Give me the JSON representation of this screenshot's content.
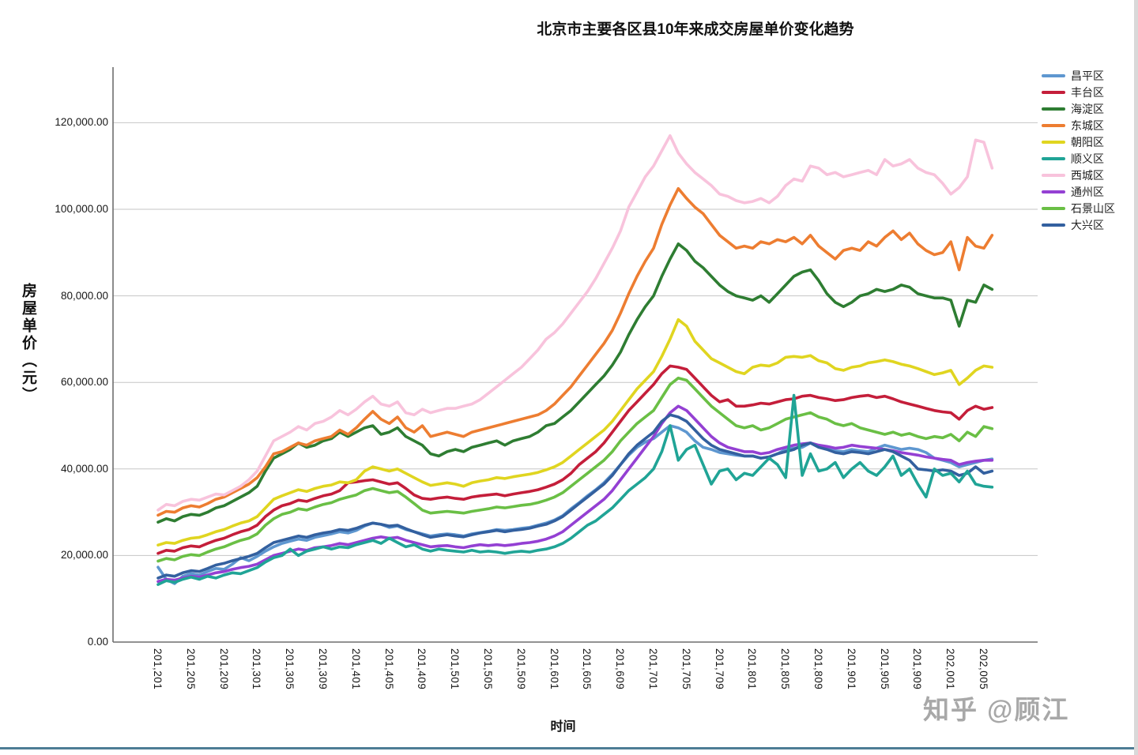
{
  "page": {
    "watermark": "知乎 @顾江",
    "bottom_bar_color": "#4d7d95"
  },
  "chart_data": {
    "type": "line",
    "title": "北京市主要各区县10年来成交房屋单价变化趋势",
    "xlabel": "时间",
    "ylabel": "房屋单价（元）",
    "x_start": "2012-01",
    "x_end": "2020-06",
    "x_interval": "monthly",
    "grid": true,
    "legend_position": "right",
    "ylim": [
      0,
      130000
    ],
    "y_ticks": [
      0,
      20000,
      40000,
      60000,
      80000,
      100000,
      120000
    ],
    "y_tick_labels": [
      "0.00",
      "20,000.00",
      "40,000.00",
      "60,000.00",
      "80,000.00",
      "100,000.00",
      "120,000.00"
    ],
    "x_tick_every_months": 4,
    "x_tick_labels": [
      "201,201",
      "201,205",
      "201,209",
      "201,301",
      "201,305",
      "201,309",
      "201,401",
      "201,405",
      "201,409",
      "201,501",
      "201,505",
      "201,509",
      "201,601",
      "201,605",
      "201,609",
      "201,701",
      "201,705",
      "201,709",
      "201,801",
      "201,805",
      "201,809",
      "201,901",
      "201,905",
      "201,909",
      "202,001",
      "202,005"
    ],
    "series": [
      {
        "name": "昌平区",
        "color": "#5E97D0",
        "values": [
          17300,
          14500,
          13500,
          15200,
          15800,
          15500,
          16300,
          17000,
          16800,
          18000,
          19500,
          18800,
          19800,
          21000,
          22000,
          22800,
          23300,
          23800,
          23500,
          24200,
          24600,
          25000,
          25500,
          25200,
          25800,
          26800,
          27500,
          27200,
          26500,
          26800,
          26000,
          25500,
          25000,
          24500,
          24800,
          25000,
          24800,
          24500,
          25000,
          25300,
          25600,
          26000,
          25800,
          26000,
          26300,
          26500,
          27000,
          27500,
          28200,
          29200,
          30800,
          32200,
          33800,
          35200,
          36800,
          38800,
          41000,
          43200,
          45000,
          46200,
          47000,
          48500,
          50000,
          49500,
          48500,
          46500,
          45000,
          44500,
          43800,
          43500,
          43200,
          43000,
          43000,
          42500,
          42800,
          43500,
          44500,
          44800,
          45000,
          46000,
          45200,
          45000,
          44200,
          44000,
          44500,
          44200,
          44000,
          44800,
          45500,
          45000,
          44500,
          44800,
          44500,
          43800,
          42500,
          42000,
          41500,
          40500,
          41000,
          41500,
          42000,
          42300
        ]
      },
      {
        "name": "丰台区",
        "color": "#C41E3A",
        "values": [
          20500,
          21200,
          21000,
          21800,
          22200,
          22000,
          22800,
          23500,
          24000,
          24800,
          25500,
          26000,
          27000,
          29000,
          30500,
          31500,
          32000,
          32800,
          32500,
          33200,
          33800,
          34200,
          35000,
          36800,
          37000,
          37300,
          37500,
          37000,
          36500,
          36800,
          35500,
          34000,
          33200,
          33000,
          33300,
          33500,
          33200,
          33000,
          33500,
          33800,
          34000,
          34200,
          33800,
          34200,
          34500,
          34800,
          35200,
          35800,
          36500,
          37500,
          39000,
          41000,
          42500,
          44000,
          46000,
          48500,
          51000,
          53500,
          55500,
          57500,
          59500,
          62000,
          63800,
          63500,
          63000,
          61000,
          59000,
          57000,
          55500,
          56000,
          54500,
          54500,
          54800,
          55200,
          55000,
          55500,
          56000,
          56200,
          56800,
          57000,
          56500,
          56200,
          55800,
          56000,
          56500,
          56800,
          57000,
          56500,
          56800,
          56200,
          55500,
          55000,
          54500,
          54000,
          53500,
          53200,
          53000,
          51500,
          53500,
          54500,
          53800,
          54200
        ]
      },
      {
        "name": "海淀区",
        "color": "#2E7D32",
        "values": [
          27700,
          28500,
          28000,
          29000,
          29500,
          29300,
          30000,
          31000,
          31500,
          32500,
          33500,
          34500,
          36000,
          39500,
          42500,
          43500,
          44500,
          46000,
          45000,
          45500,
          46500,
          47000,
          48500,
          47500,
          48500,
          49500,
          50000,
          48000,
          48500,
          49500,
          47500,
          46500,
          45500,
          43500,
          43000,
          44000,
          44500,
          44000,
          45000,
          45500,
          46000,
          46500,
          45500,
          46500,
          47000,
          47500,
          48500,
          50000,
          50500,
          52000,
          53500,
          55500,
          57500,
          59500,
          61500,
          64000,
          67000,
          71000,
          74500,
          77500,
          80000,
          84500,
          88500,
          92000,
          90500,
          88000,
          86500,
          84500,
          82500,
          81000,
          80000,
          79500,
          79000,
          80000,
          78500,
          80500,
          82500,
          84500,
          85500,
          86000,
          83500,
          80500,
          78500,
          77500,
          78500,
          80000,
          80500,
          81500,
          81000,
          81500,
          82500,
          82000,
          80500,
          80000,
          79500,
          79500,
          79000,
          73000,
          79000,
          78500,
          82500,
          81500
        ]
      },
      {
        "name": "东城区",
        "color": "#ED7D31",
        "values": [
          29300,
          30200,
          30000,
          31000,
          31500,
          31200,
          32000,
          33000,
          33500,
          34500,
          35500,
          36500,
          38000,
          40500,
          43500,
          44000,
          45000,
          46000,
          45500,
          46500,
          47000,
          47500,
          49000,
          48000,
          49500,
          51500,
          53300,
          51500,
          50500,
          52000,
          49500,
          48500,
          50000,
          47500,
          48000,
          48500,
          48000,
          47500,
          48500,
          49000,
          49500,
          50000,
          50500,
          51000,
          51500,
          52000,
          52500,
          53500,
          55000,
          57000,
          59000,
          61500,
          64000,
          66500,
          69000,
          72000,
          76000,
          80500,
          84500,
          88000,
          91000,
          96500,
          101000,
          104800,
          102500,
          100500,
          99000,
          96500,
          94000,
          92500,
          91000,
          91500,
          91000,
          92500,
          92000,
          93000,
          92500,
          93500,
          92000,
          94000,
          91500,
          90000,
          88500,
          90500,
          91000,
          90500,
          92500,
          91500,
          93500,
          95000,
          93000,
          94500,
          92000,
          90500,
          89500,
          90000,
          92500,
          86000,
          93500,
          91500,
          91000,
          94000
        ]
      },
      {
        "name": "朝阳区",
        "color": "#E0D520",
        "values": [
          22400,
          23000,
          22800,
          23500,
          24000,
          24200,
          24800,
          25500,
          26000,
          26800,
          27500,
          28000,
          29000,
          31000,
          33000,
          33800,
          34500,
          35200,
          34800,
          35500,
          36000,
          36300,
          37000,
          36800,
          37500,
          39500,
          40500,
          40000,
          39500,
          40000,
          39000,
          38000,
          37000,
          36200,
          36500,
          36800,
          36500,
          36000,
          36800,
          37200,
          37500,
          38000,
          37800,
          38200,
          38500,
          38800,
          39200,
          39800,
          40500,
          41500,
          43000,
          44500,
          46000,
          47500,
          49000,
          51000,
          53500,
          56000,
          58500,
          60500,
          62500,
          66000,
          70000,
          74500,
          73000,
          69500,
          67500,
          65500,
          64500,
          63500,
          62500,
          62000,
          63500,
          64000,
          63800,
          64500,
          65800,
          66000,
          65800,
          66200,
          65000,
          64500,
          63200,
          62800,
          63500,
          63800,
          64500,
          64800,
          65200,
          64800,
          64200,
          63800,
          63200,
          62500,
          61800,
          62200,
          62800,
          59500,
          61000,
          62800,
          63800,
          63500
        ]
      },
      {
        "name": "顺义区",
        "color": "#20A496",
        "values": [
          13300,
          14200,
          13800,
          14500,
          15000,
          14500,
          15200,
          14800,
          15500,
          16000,
          15800,
          16500,
          17200,
          18500,
          19500,
          20000,
          21500,
          20000,
          21000,
          21500,
          22000,
          21500,
          22000,
          21800,
          22500,
          23000,
          23500,
          22800,
          24000,
          23000,
          22000,
          22500,
          21500,
          21000,
          21500,
          21200,
          21000,
          20800,
          21200,
          20800,
          21000,
          20800,
          20500,
          20800,
          21000,
          20800,
          21200,
          21500,
          22000,
          22800,
          24000,
          25500,
          27000,
          28000,
          29500,
          31000,
          33000,
          35000,
          36500,
          38000,
          40000,
          44000,
          50000,
          42000,
          44500,
          45500,
          41000,
          36500,
          39500,
          40000,
          37500,
          39000,
          38500,
          40500,
          42500,
          41000,
          38000,
          57000,
          38500,
          43500,
          39500,
          40000,
          41500,
          38000,
          40000,
          41500,
          39500,
          38500,
          40500,
          43000,
          38500,
          40000,
          36500,
          33500,
          40000,
          38500,
          39000,
          37000,
          39500,
          36500,
          36000,
          35800
        ]
      },
      {
        "name": "西城区",
        "color": "#F8C3DC",
        "values": [
          30500,
          31800,
          31500,
          32500,
          33000,
          32800,
          33500,
          34200,
          34000,
          35000,
          36000,
          37500,
          39500,
          43000,
          46500,
          47500,
          48500,
          49800,
          49000,
          50500,
          51000,
          52000,
          53500,
          52500,
          53800,
          55500,
          56800,
          55000,
          54500,
          55500,
          53000,
          52500,
          53800,
          53000,
          53500,
          54000,
          54000,
          54500,
          55000,
          56000,
          57500,
          59000,
          60500,
          62000,
          63500,
          65500,
          67500,
          70000,
          71500,
          73500,
          76000,
          78500,
          81000,
          84000,
          87500,
          91000,
          95000,
          100500,
          104000,
          107500,
          110000,
          113500,
          117000,
          113000,
          110500,
          108500,
          107000,
          105500,
          103500,
          103000,
          102000,
          101500,
          101800,
          102500,
          101500,
          103000,
          105500,
          107000,
          106500,
          110000,
          109500,
          108000,
          108500,
          107500,
          108000,
          108500,
          109000,
          108000,
          111500,
          110000,
          110500,
          111500,
          109500,
          108500,
          108000,
          106000,
          103500,
          105000,
          107500,
          116000,
          115500,
          109500
        ]
      },
      {
        "name": "通州区",
        "color": "#9440D3",
        "values": [
          14000,
          14500,
          14300,
          14800,
          15200,
          15000,
          15500,
          16000,
          16300,
          16800,
          17200,
          17500,
          18000,
          19000,
          20000,
          20500,
          21000,
          21500,
          21200,
          21800,
          22000,
          22300,
          22800,
          22500,
          23000,
          23500,
          24000,
          24300,
          24000,
          24200,
          23500,
          23000,
          22500,
          22000,
          22200,
          22300,
          22000,
          21800,
          22200,
          22500,
          22300,
          22500,
          22300,
          22500,
          22800,
          23000,
          23300,
          23800,
          24500,
          25500,
          27000,
          28500,
          30000,
          31500,
          33000,
          35000,
          37500,
          40000,
          42500,
          45000,
          47500,
          50500,
          53000,
          54500,
          53500,
          51500,
          49500,
          47500,
          46000,
          45000,
          44500,
          44000,
          44000,
          43500,
          43800,
          44500,
          45000,
          45500,
          45800,
          46000,
          45500,
          45200,
          44800,
          45000,
          45500,
          45200,
          45000,
          44800,
          44500,
          44200,
          43800,
          43500,
          43200,
          42800,
          42500,
          42200,
          42000,
          41000,
          41500,
          41800,
          42000,
          42000
        ]
      },
      {
        "name": "石景山区",
        "color": "#6ABF45",
        "values": [
          18700,
          19300,
          19000,
          19800,
          20200,
          20000,
          20800,
          21500,
          22000,
          22800,
          23500,
          24000,
          25000,
          27000,
          28500,
          29500,
          30000,
          30800,
          30500,
          31200,
          31800,
          32200,
          33000,
          33500,
          34000,
          35000,
          35500,
          35000,
          34500,
          34800,
          33500,
          32000,
          30500,
          29800,
          30000,
          30200,
          30000,
          29800,
          30200,
          30500,
          30800,
          31200,
          31000,
          31300,
          31600,
          31800,
          32200,
          32800,
          33500,
          34500,
          36000,
          37500,
          39000,
          40500,
          42000,
          44000,
          46500,
          48500,
          50500,
          52000,
          53500,
          56500,
          59500,
          61000,
          60500,
          58500,
          56500,
          54500,
          53000,
          51500,
          50000,
          49500,
          50000,
          49000,
          49500,
          50500,
          51500,
          52000,
          52500,
          53000,
          52000,
          51500,
          50500,
          50000,
          50500,
          49500,
          49000,
          48500,
          48000,
          48500,
          47800,
          48200,
          47500,
          47000,
          47500,
          47200,
          48000,
          46500,
          48500,
          47500,
          49800,
          49300
        ]
      },
      {
        "name": "大兴区",
        "color": "#33609F",
        "values": [
          14800,
          15500,
          15200,
          16000,
          16500,
          16300,
          17000,
          17800,
          18200,
          18800,
          19300,
          19800,
          20500,
          21800,
          23000,
          23500,
          24000,
          24500,
          24200,
          24800,
          25200,
          25500,
          26000,
          25800,
          26300,
          27000,
          27500,
          27200,
          26800,
          27000,
          26200,
          25500,
          24800,
          24200,
          24500,
          24800,
          24500,
          24300,
          24800,
          25200,
          25500,
          25800,
          25500,
          25800,
          26000,
          26300,
          26800,
          27200,
          28000,
          29000,
          30500,
          32000,
          33500,
          35000,
          36500,
          38500,
          41000,
          43500,
          45500,
          47000,
          48500,
          51000,
          52500,
          52000,
          51000,
          49000,
          47000,
          45500,
          44500,
          44000,
          43500,
          43000,
          43000,
          42500,
          42800,
          43500,
          44000,
          44500,
          45500,
          46000,
          45000,
          44500,
          43800,
          43500,
          44000,
          43800,
          43500,
          44000,
          44500,
          44000,
          43000,
          42000,
          40000,
          39800,
          39500,
          39800,
          39500,
          38500,
          39000,
          40500,
          39000,
          39500
        ]
      }
    ]
  }
}
